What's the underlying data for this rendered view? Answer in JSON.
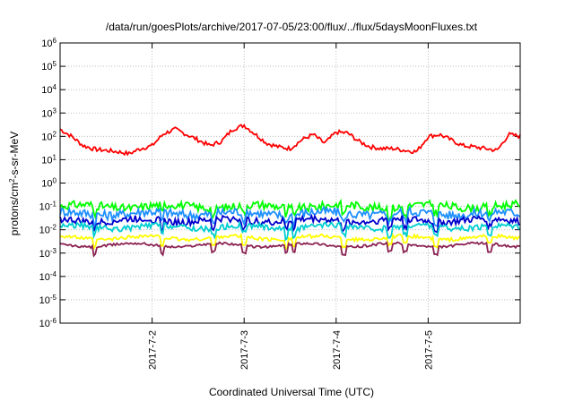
{
  "chart_data": {
    "type": "line",
    "title": "/data/run/goesPlots/archive/2017-07-05/23:00/flux/../flux/5daysMoonFluxes.txt",
    "xlabel": "Coordinated Universal Time (UTC)",
    "ylabel": {
      "base": "protons/cm",
      "sup": "2",
      "rest": "-s-sr-MeV"
    },
    "y_scale": "log",
    "ylim": [
      1e-06,
      1000000.0
    ],
    "y_ticks": [
      {
        "base": "10",
        "exp": "-6"
      },
      {
        "base": "10",
        "exp": "-5"
      },
      {
        "base": "10",
        "exp": "-4"
      },
      {
        "base": "10",
        "exp": "-3"
      },
      {
        "base": "10",
        "exp": "-2"
      },
      {
        "base": "10",
        "exp": "-1"
      },
      {
        "base": "10",
        "exp": "0"
      },
      {
        "base": "10",
        "exp": "1"
      },
      {
        "base": "10",
        "exp": "2"
      },
      {
        "base": "10",
        "exp": "3"
      },
      {
        "base": "10",
        "exp": "4"
      },
      {
        "base": "10",
        "exp": "5"
      },
      {
        "base": "10",
        "exp": "6"
      }
    ],
    "xlim": [
      "2017-07-01 00:00",
      "2017-07-06 00:00"
    ],
    "x_ticks": [
      {
        "value": "2017-07-02",
        "label": "2017-7-2"
      },
      {
        "value": "2017-07-03",
        "label": "2017-7-3"
      },
      {
        "value": "2017-07-04",
        "label": "2017-7-4"
      },
      {
        "value": "2017-07-05",
        "label": "2017-7-5"
      }
    ],
    "grid": true,
    "series": [
      {
        "color": "#ff0000",
        "x": [
          "2017-07-01 00:00",
          "2017-07-01 03:00",
          "2017-07-01 06:00",
          "2017-07-01 09:00",
          "2017-07-01 12:00",
          "2017-07-01 15:00",
          "2017-07-01 18:00",
          "2017-07-01 21:00",
          "2017-07-02 00:00",
          "2017-07-02 03:00",
          "2017-07-02 06:00",
          "2017-07-02 09:00",
          "2017-07-02 12:00",
          "2017-07-02 15:00",
          "2017-07-02 18:00",
          "2017-07-02 21:00",
          "2017-07-03 00:00",
          "2017-07-03 03:00",
          "2017-07-03 06:00",
          "2017-07-03 09:00",
          "2017-07-03 12:00",
          "2017-07-03 15:00",
          "2017-07-03 18:00",
          "2017-07-03 21:00",
          "2017-07-04 00:00",
          "2017-07-04 03:00",
          "2017-07-04 06:00",
          "2017-07-04 09:00",
          "2017-07-04 12:00",
          "2017-07-04 15:00",
          "2017-07-04 18:00",
          "2017-07-04 21:00",
          "2017-07-05 00:00",
          "2017-07-05 03:00",
          "2017-07-05 06:00",
          "2017-07-05 09:00",
          "2017-07-05 12:00",
          "2017-07-05 15:00",
          "2017-07-05 18:00",
          "2017-07-05 21:00",
          "2017-07-06 00:00"
        ],
        "y": [
          200,
          100,
          40,
          28,
          25,
          22,
          18,
          30,
          40,
          130,
          200,
          120,
          70,
          40,
          60,
          200,
          300,
          120,
          50,
          35,
          30,
          70,
          120,
          50,
          150,
          140,
          60,
          35,
          30,
          30,
          25,
          22,
          100,
          120,
          70,
          40,
          35,
          30,
          25,
          120,
          100
        ]
      },
      {
        "color": "#00ff00",
        "mean": 0.1,
        "amplitude": 0.35,
        "phase": 0.0
      },
      {
        "color": "#1e90ff",
        "mean": 0.05,
        "amplitude": 0.4,
        "phase": 1.3
      },
      {
        "color": "#0000cd",
        "mean": 0.025,
        "amplitude": 0.3,
        "phase": 2.1
      },
      {
        "color": "#00ced1",
        "mean": 0.013,
        "amplitude": 0.25,
        "phase": 0.7
      },
      {
        "color": "#ffff00",
        "mean": 0.0045,
        "amplitude": 0.15,
        "phase": 1.7
      },
      {
        "color": "#8b2252",
        "mean": 0.0022,
        "amplitude": 0.1,
        "phase": 2.6
      }
    ],
    "dips": [
      "2017-07-01 09:00",
      "2017-07-02 02:30",
      "2017-07-02 16:00",
      "2017-07-03 00:00",
      "2017-07-03 11:00",
      "2017-07-03 13:00",
      "2017-07-04 02:00",
      "2017-07-04 14:00",
      "2017-07-04 18:00",
      "2017-07-05 02:00",
      "2017-07-05 16:00"
    ]
  }
}
